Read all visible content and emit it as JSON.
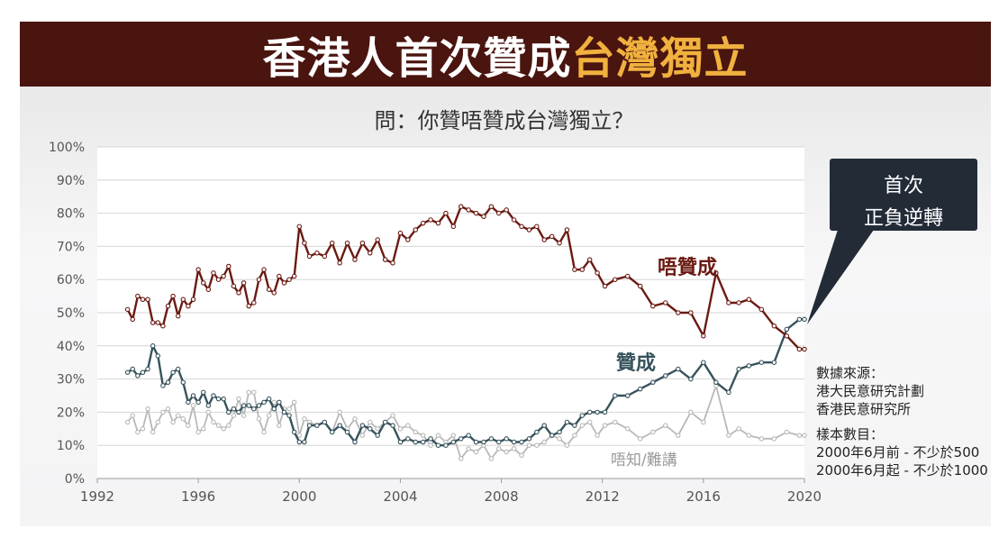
{
  "banner": {
    "title_main": "香港人首次贊成",
    "title_accent": "台灣獨立"
  },
  "question": "問：你贊唔贊成台灣獨立？",
  "callout": {
    "line1": "首次",
    "line2": "正負逆轉"
  },
  "notes": {
    "source_lines": [
      "數據來源：",
      "港大民意研究計劃",
      "香港民意研究所"
    ],
    "sample_lines": [
      "樣本數目：",
      "2000年6月前 - 不少於500",
      "2000年6月起 - 不少於1000"
    ]
  },
  "colors": {
    "banner_bg": "#4a140f",
    "accent": "#f0b13e",
    "oppose": "#6b1a12",
    "support": "#37535c",
    "dontknow": "#b8b8b8"
  },
  "chart_data": {
    "type": "line",
    "xlim": [
      1992,
      2020
    ],
    "ylim": [
      0,
      100
    ],
    "x_ticks": [
      1992,
      1996,
      2000,
      2004,
      2008,
      2012,
      2016,
      2020
    ],
    "y_ticks": [
      0,
      10,
      20,
      30,
      40,
      50,
      60,
      70,
      80,
      90,
      100
    ],
    "x_tick_labels": [
      "1992",
      "1996",
      "2000",
      "2004",
      "2008",
      "2012",
      "2016",
      "2020"
    ],
    "y_tick_labels": [
      "0%",
      "10%",
      "20%",
      "30%",
      "40%",
      "50%",
      "60%",
      "70%",
      "80%",
      "90%",
      "100%"
    ],
    "grid": true,
    "series": [
      {
        "name": "唔贊成",
        "color": "#6b1a12",
        "x": [
          1993.2,
          1993.4,
          1993.6,
          1993.8,
          1994.0,
          1994.2,
          1994.4,
          1994.6,
          1994.8,
          1995.0,
          1995.2,
          1995.4,
          1995.6,
          1995.8,
          1996.0,
          1996.2,
          1996.4,
          1996.6,
          1996.8,
          1997.0,
          1997.2,
          1997.4,
          1997.6,
          1997.8,
          1998.0,
          1998.2,
          1998.4,
          1998.6,
          1998.8,
          1999.0,
          1999.2,
          1999.4,
          1999.6,
          1999.8,
          2000.0,
          2000.2,
          2000.4,
          2000.7,
          2001.0,
          2001.3,
          2001.6,
          2001.9,
          2002.2,
          2002.5,
          2002.8,
          2003.1,
          2003.4,
          2003.7,
          2004.0,
          2004.3,
          2004.6,
          2004.9,
          2005.2,
          2005.5,
          2005.8,
          2006.1,
          2006.4,
          2006.7,
          2007.0,
          2007.3,
          2007.6,
          2007.9,
          2008.2,
          2008.5,
          2008.8,
          2009.1,
          2009.4,
          2009.7,
          2010.0,
          2010.3,
          2010.6,
          2010.9,
          2011.2,
          2011.5,
          2011.8,
          2012.1,
          2012.5,
          2013.0,
          2013.5,
          2014.0,
          2014.5,
          2015.0,
          2015.5,
          2016.0,
          2016.5,
          2017.0,
          2017.4,
          2017.8,
          2018.3,
          2018.8,
          2019.3,
          2019.8,
          2020.0
        ],
        "y": [
          51,
          48,
          55,
          54,
          54,
          47,
          47,
          46,
          52,
          55,
          49,
          54,
          52,
          54,
          63,
          59,
          57,
          62,
          60,
          61,
          64,
          58,
          56,
          59,
          52,
          53,
          60,
          63,
          57,
          56,
          61,
          59,
          60,
          61,
          76,
          71,
          67,
          68,
          67,
          71,
          65,
          71,
          66,
          71,
          68,
          72,
          66,
          65,
          74,
          72,
          75,
          77,
          78,
          77,
          80,
          76,
          82,
          81,
          80,
          79,
          82,
          80,
          81,
          78,
          76,
          75,
          76,
          72,
          73,
          71,
          75,
          63,
          63,
          66,
          62,
          58,
          60,
          61,
          58,
          52,
          53,
          50,
          50,
          43,
          62,
          53,
          53,
          54,
          51,
          46,
          43,
          39,
          39
        ]
      },
      {
        "name": "贊成",
        "color": "#37535c",
        "x": [
          1993.2,
          1993.4,
          1993.6,
          1993.8,
          1994.0,
          1994.2,
          1994.4,
          1994.6,
          1994.8,
          1995.0,
          1995.2,
          1995.4,
          1995.6,
          1995.8,
          1996.0,
          1996.2,
          1996.4,
          1996.6,
          1996.8,
          1997.0,
          1997.2,
          1997.4,
          1997.6,
          1997.8,
          1998.0,
          1998.2,
          1998.4,
          1998.6,
          1998.8,
          1999.0,
          1999.2,
          1999.4,
          1999.6,
          1999.8,
          2000.0,
          2000.2,
          2000.4,
          2000.7,
          2001.0,
          2001.3,
          2001.6,
          2001.9,
          2002.2,
          2002.5,
          2002.8,
          2003.1,
          2003.4,
          2003.7,
          2004.0,
          2004.3,
          2004.6,
          2004.9,
          2005.2,
          2005.5,
          2005.8,
          2006.1,
          2006.4,
          2006.7,
          2007.0,
          2007.3,
          2007.6,
          2007.9,
          2008.2,
          2008.5,
          2008.8,
          2009.1,
          2009.4,
          2009.7,
          2010.0,
          2010.3,
          2010.6,
          2010.9,
          2011.2,
          2011.5,
          2011.8,
          2012.1,
          2012.5,
          2013.0,
          2013.5,
          2014.0,
          2014.5,
          2015.0,
          2015.5,
          2016.0,
          2016.5,
          2017.0,
          2017.4,
          2017.8,
          2018.3,
          2018.8,
          2019.3,
          2019.8,
          2020.0
        ],
        "y": [
          32,
          33,
          31,
          32,
          33,
          40,
          37,
          28,
          29,
          32,
          33,
          29,
          23,
          25,
          23,
          26,
          22,
          25,
          24,
          24,
          20,
          21,
          20,
          22,
          22,
          21,
          22,
          23,
          24,
          21,
          23,
          20,
          19,
          14,
          11,
          11,
          16,
          16,
          17,
          14,
          16,
          14,
          11,
          16,
          15,
          13,
          17,
          16,
          11,
          12,
          11,
          11,
          12,
          10,
          10,
          11,
          12,
          13,
          11,
          11,
          12,
          11,
          12,
          11,
          11,
          12,
          14,
          16,
          13,
          14,
          17,
          16,
          19,
          20,
          20,
          20,
          25,
          25,
          27,
          29,
          31,
          33,
          30,
          35,
          29,
          26,
          33,
          34,
          35,
          35,
          45,
          48,
          48
        ]
      },
      {
        "name": "唔知/難講",
        "color": "#b8b8b8",
        "x": [
          1993.2,
          1993.4,
          1993.6,
          1993.8,
          1994.0,
          1994.2,
          1994.4,
          1994.6,
          1994.8,
          1995.0,
          1995.2,
          1995.4,
          1995.6,
          1995.8,
          1996.0,
          1996.2,
          1996.4,
          1996.6,
          1996.8,
          1997.0,
          1997.2,
          1997.4,
          1997.6,
          1997.8,
          1998.0,
          1998.2,
          1998.4,
          1998.6,
          1998.8,
          1999.0,
          1999.2,
          1999.4,
          1999.6,
          1999.8,
          2000.0,
          2000.2,
          2000.4,
          2000.7,
          2001.0,
          2001.3,
          2001.6,
          2001.9,
          2002.2,
          2002.5,
          2002.8,
          2003.1,
          2003.4,
          2003.7,
          2004.0,
          2004.3,
          2004.6,
          2004.9,
          2005.2,
          2005.5,
          2005.8,
          2006.1,
          2006.4,
          2006.7,
          2007.0,
          2007.3,
          2007.6,
          2007.9,
          2008.2,
          2008.5,
          2008.8,
          2009.1,
          2009.4,
          2009.7,
          2010.0,
          2010.3,
          2010.6,
          2010.9,
          2011.2,
          2011.5,
          2011.8,
          2012.1,
          2012.5,
          2013.0,
          2013.5,
          2014.0,
          2014.5,
          2015.0,
          2015.5,
          2016.0,
          2016.5,
          2017.0,
          2017.4,
          2017.8,
          2018.3,
          2018.8,
          2019.3,
          2019.8,
          2020.0
        ],
        "y": [
          17,
          19,
          14,
          15,
          21,
          14,
          17,
          20,
          21,
          17,
          19,
          18,
          16,
          22,
          14,
          15,
          20,
          17,
          16,
          15,
          16,
          19,
          24,
          19,
          26,
          26,
          18,
          14,
          19,
          23,
          16,
          21,
          21,
          23,
          13,
          18,
          17,
          16,
          17,
          14,
          20,
          15,
          18,
          13,
          17,
          15,
          17,
          19,
          15,
          16,
          14,
          13,
          10,
          13,
          11,
          13,
          6,
          9,
          8,
          10,
          6,
          9,
          8,
          9,
          7,
          10,
          10,
          11,
          13,
          12,
          10,
          13,
          16,
          17,
          13,
          16,
          17,
          15,
          12,
          14,
          16,
          13,
          20,
          17,
          28,
          13,
          15,
          13,
          12,
          12,
          14,
          13,
          13
        ]
      }
    ],
    "labels": {
      "oppose": "唔贊成",
      "support": "贊成",
      "dontknow": "唔知/難講"
    }
  }
}
